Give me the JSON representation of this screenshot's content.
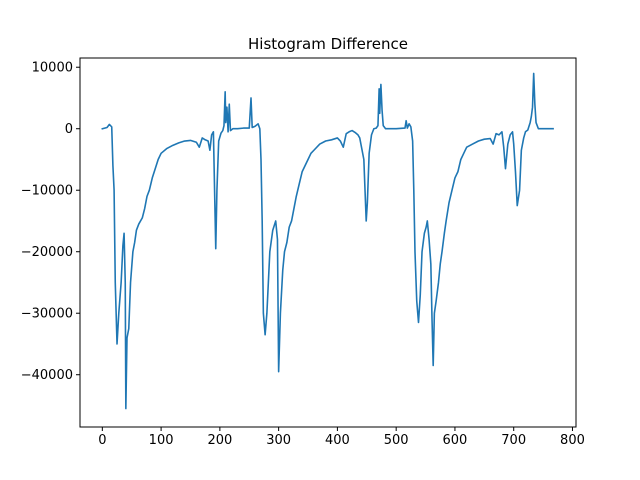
{
  "chart_data": {
    "type": "line",
    "title": "Histogram Difference",
    "xlabel": "",
    "ylabel": "",
    "xlim": [
      -38,
      806
    ],
    "ylim": [
      -48500,
      11500
    ],
    "grid": false,
    "xticks": [
      0,
      100,
      200,
      300,
      400,
      500,
      600,
      700,
      800
    ],
    "yticks": [
      10000,
      0,
      -10000,
      -20000,
      -30000,
      -40000
    ],
    "ytick_labels": [
      "10000",
      "0",
      "−10000",
      "−20000",
      "−30000",
      "−40000"
    ],
    "series": [
      {
        "color": "#1f77b4",
        "points": [
          [
            0,
            0
          ],
          [
            8,
            200
          ],
          [
            12,
            700
          ],
          [
            16,
            300
          ],
          [
            18,
            -6000
          ],
          [
            20,
            -10000
          ],
          [
            22,
            -25000
          ],
          [
            25,
            -35000
          ],
          [
            28,
            -30000
          ],
          [
            32,
            -25000
          ],
          [
            35,
            -19000
          ],
          [
            37,
            -17000
          ],
          [
            39,
            -25000
          ],
          [
            40,
            -45500
          ],
          [
            42,
            -34000
          ],
          [
            45,
            -32500
          ],
          [
            48,
            -25000
          ],
          [
            52,
            -20000
          ],
          [
            55,
            -18500
          ],
          [
            58,
            -16500
          ],
          [
            62,
            -15500
          ],
          [
            68,
            -14500
          ],
          [
            72,
            -13000
          ],
          [
            76,
            -11000
          ],
          [
            80,
            -10000
          ],
          [
            85,
            -8000
          ],
          [
            90,
            -6500
          ],
          [
            95,
            -5000
          ],
          [
            100,
            -4000
          ],
          [
            110,
            -3200
          ],
          [
            120,
            -2700
          ],
          [
            130,
            -2300
          ],
          [
            140,
            -2000
          ],
          [
            150,
            -1900
          ],
          [
            160,
            -2200
          ],
          [
            165,
            -3000
          ],
          [
            170,
            -1500
          ],
          [
            175,
            -1800
          ],
          [
            180,
            -2000
          ],
          [
            183,
            -3500
          ],
          [
            186,
            -1000
          ],
          [
            189,
            -500
          ],
          [
            191,
            -10000
          ],
          [
            193,
            -19500
          ],
          [
            195,
            -10000
          ],
          [
            198,
            -2000
          ],
          [
            202,
            -700
          ],
          [
            205,
            -300
          ],
          [
            207,
            500
          ],
          [
            209,
            6000
          ],
          [
            210,
            1000
          ],
          [
            212,
            3500
          ],
          [
            214,
            -500
          ],
          [
            216,
            4000
          ],
          [
            218,
            -300
          ],
          [
            222,
            0
          ],
          [
            230,
            0
          ],
          [
            240,
            100
          ],
          [
            250,
            100
          ],
          [
            253,
            5000
          ],
          [
            255,
            200
          ],
          [
            260,
            400
          ],
          [
            265,
            800
          ],
          [
            268,
            0
          ],
          [
            270,
            -5000
          ],
          [
            272,
            -15000
          ],
          [
            274,
            -30000
          ],
          [
            277,
            -33500
          ],
          [
            280,
            -30000
          ],
          [
            285,
            -20000
          ],
          [
            290,
            -16500
          ],
          [
            295,
            -15000
          ],
          [
            298,
            -18000
          ],
          [
            300,
            -39500
          ],
          [
            303,
            -30000
          ],
          [
            307,
            -23000
          ],
          [
            310,
            -20000
          ],
          [
            314,
            -18500
          ],
          [
            318,
            -16000
          ],
          [
            322,
            -15000
          ],
          [
            326,
            -13000
          ],
          [
            330,
            -11000
          ],
          [
            335,
            -9000
          ],
          [
            340,
            -7000
          ],
          [
            345,
            -6000
          ],
          [
            350,
            -5000
          ],
          [
            355,
            -4000
          ],
          [
            360,
            -3500
          ],
          [
            370,
            -2500
          ],
          [
            380,
            -2000
          ],
          [
            390,
            -1800
          ],
          [
            400,
            -1500
          ],
          [
            405,
            -2000
          ],
          [
            410,
            -3000
          ],
          [
            415,
            -800
          ],
          [
            420,
            -500
          ],
          [
            425,
            -300
          ],
          [
            430,
            -600
          ],
          [
            435,
            -1000
          ],
          [
            438,
            -1500
          ],
          [
            440,
            -2500
          ],
          [
            442,
            -3500
          ],
          [
            445,
            -5000
          ],
          [
            447,
            -10000
          ],
          [
            449,
            -15000
          ],
          [
            451,
            -12000
          ],
          [
            454,
            -4000
          ],
          [
            458,
            -1000
          ],
          [
            462,
            0
          ],
          [
            466,
            100
          ],
          [
            469,
            500
          ],
          [
            471,
            6500
          ],
          [
            472,
            2500
          ],
          [
            474,
            7200
          ],
          [
            476,
            3000
          ],
          [
            478,
            500
          ],
          [
            482,
            0
          ],
          [
            500,
            0
          ],
          [
            515,
            100
          ],
          [
            517,
            1300
          ],
          [
            519,
            100
          ],
          [
            522,
            800
          ],
          [
            525,
            300
          ],
          [
            528,
            -2000
          ],
          [
            530,
            -10000
          ],
          [
            532,
            -20000
          ],
          [
            535,
            -28000
          ],
          [
            538,
            -31500
          ],
          [
            541,
            -27000
          ],
          [
            544,
            -20000
          ],
          [
            548,
            -17000
          ],
          [
            551,
            -16000
          ],
          [
            553,
            -15000
          ],
          [
            556,
            -18000
          ],
          [
            559,
            -22000
          ],
          [
            561,
            -31000
          ],
          [
            563,
            -38500
          ],
          [
            565,
            -30000
          ],
          [
            568,
            -28000
          ],
          [
            572,
            -25000
          ],
          [
            575,
            -22000
          ],
          [
            578,
            -20000
          ],
          [
            582,
            -17000
          ],
          [
            585,
            -15000
          ],
          [
            590,
            -12000
          ],
          [
            595,
            -10000
          ],
          [
            600,
            -8000
          ],
          [
            605,
            -7000
          ],
          [
            610,
            -5000
          ],
          [
            615,
            -4000
          ],
          [
            620,
            -3000
          ],
          [
            630,
            -2500
          ],
          [
            640,
            -2000
          ],
          [
            650,
            -1700
          ],
          [
            660,
            -1600
          ],
          [
            665,
            -2500
          ],
          [
            670,
            -800
          ],
          [
            675,
            -1000
          ],
          [
            680,
            -500
          ],
          [
            683,
            -3000
          ],
          [
            686,
            -6500
          ],
          [
            690,
            -2500
          ],
          [
            694,
            -1000
          ],
          [
            698,
            -500
          ],
          [
            700,
            -2500
          ],
          [
            703,
            -7000
          ],
          [
            706,
            -12500
          ],
          [
            710,
            -10000
          ],
          [
            713,
            -3500
          ],
          [
            717,
            -1500
          ],
          [
            720,
            -500
          ],
          [
            724,
            -200
          ],
          [
            728,
            1000
          ],
          [
            730,
            2000
          ],
          [
            732,
            3500
          ],
          [
            734,
            9000
          ],
          [
            736,
            4000
          ],
          [
            738,
            1000
          ],
          [
            742,
            0
          ],
          [
            750,
            0
          ],
          [
            760,
            0
          ],
          [
            767,
            0
          ]
        ]
      }
    ]
  }
}
